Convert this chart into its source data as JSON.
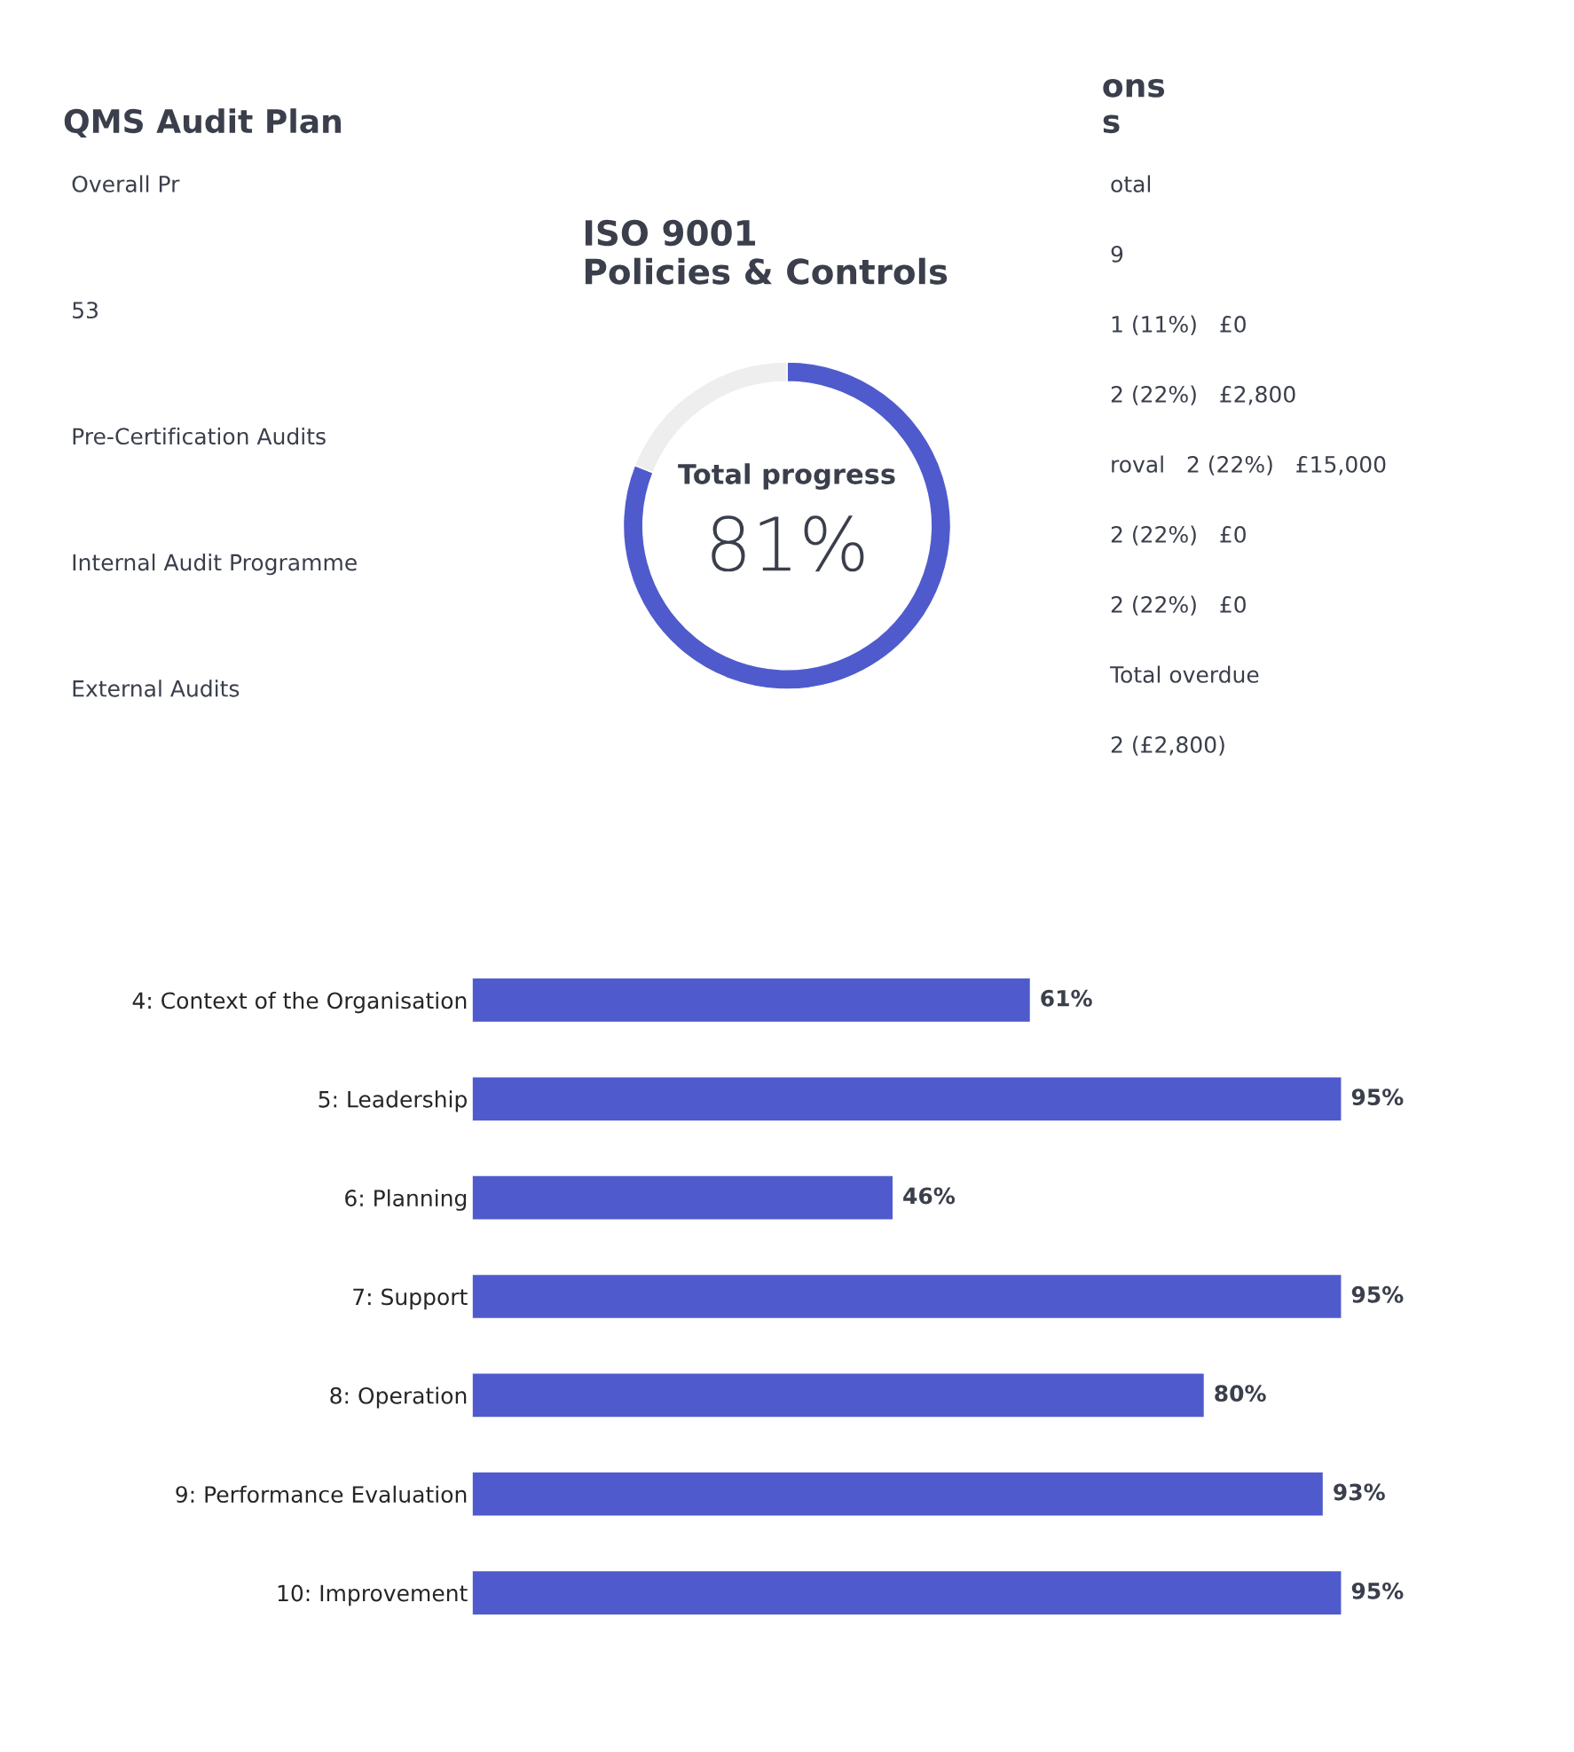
{
  "chart_data": [
    {
      "type": "other",
      "title": "QMS Audit Plan",
      "annotations": [
        "Overall Pr",
        "53",
        "Pre-Certification Audits",
        "Internal Audit Programme",
        "External Audits"
      ]
    },
    {
      "type": "donut",
      "title": "ISO 9001\nPolicies & Controls",
      "categories": [
        null,
        null
      ],
      "values": [
        81,
        19
      ],
      "colors": [
        "#4f5bcc",
        "#eeeeee"
      ],
      "annotations": [
        "Total progress",
        "81%"
      ]
    },
    {
      "type": "other",
      "title": "ons\ns",
      "annotations": [
        "otal",
        "9",
        "1 (11%)   £0",
        "2 (22%)   £2,800",
        "roval   2 (22%)   £15,000",
        "2 (22%)   £0",
        "2 (22%)   £0",
        "Total overdue",
        "2 (£2,800)"
      ]
    },
    {
      "type": "bar",
      "orientation": "horizontal",
      "categories": [
        "4: Context of the Organisation",
        "5: Leadership",
        "6: Planning",
        "7: Support",
        "8: Operation",
        "9: Performance Evaluation",
        "10: Improvement"
      ],
      "values": [
        61,
        95,
        46,
        95,
        80,
        93,
        95
      ],
      "value_labels": [
        "61%",
        "95%",
        "46%",
        "95%",
        "80%",
        "93%",
        "95%"
      ],
      "color": "#4f5bcc",
      "tick_labels": "y",
      "grid": false,
      "legend": false
    }
  ]
}
